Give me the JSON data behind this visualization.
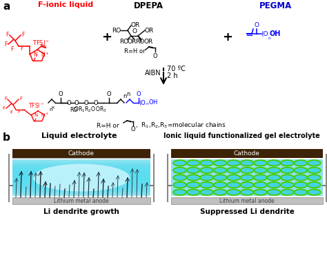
{
  "background_color": "#ffffff",
  "panel_a_label": "a",
  "panel_b_label": "b",
  "fionic_label": "F-ionic liquid",
  "fionic_color": "#ff0000",
  "dpepa_label": "DPEPA",
  "dpepa_color": "#000000",
  "pegma_label": "PEGMA",
  "pegma_color": "#0000cc",
  "aibn_label": "AIBN",
  "temp_label": "70 ºC",
  "time_label": "2 h",
  "left_title": "Liquid electrolyte",
  "right_title": "Ionic liquid functionalized gel electrolyte",
  "cathode_label": "Cathode",
  "anode_label": "Lithium metal anode",
  "anode_label2": "Lithium metal anode",
  "left_bottom_label": "Li dendrite growth",
  "right_bottom_label": "Suppressed Li dendrite",
  "cathode_color": "#3d2408",
  "anode_color": "#a0a0a0",
  "cyan_color": "#40d8f0",
  "coil_color": "#44cc00",
  "coil_fill": "#00c8d4"
}
